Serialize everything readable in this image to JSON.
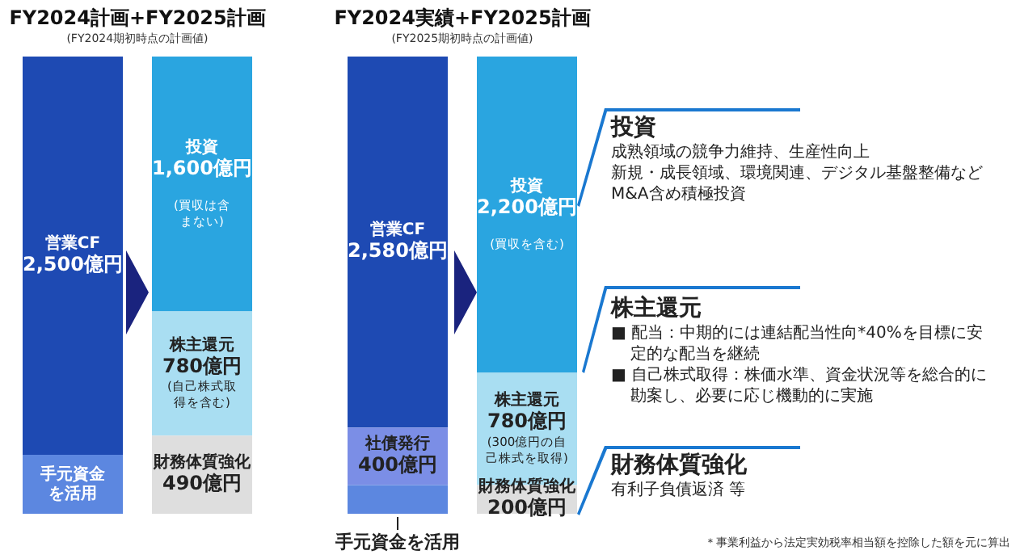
{
  "chart_data": [
    {
      "type": "bar",
      "title": "FY2024計画+FY2025計画",
      "subtitle": "(FY2024期初時点の計画値)",
      "categories": [
        null,
        null
      ],
      "stacked": true,
      "series": [
        {
          "name": "手元資金を活用",
          "color": "#5c87e0",
          "values": [
            370,
            null
          ],
          "value_labels": [
            null,
            null
          ]
        },
        {
          "name": "営業CF",
          "color": "#1e4ab3",
          "values": [
            2500,
            null
          ],
          "value_labels": [
            "2,500億円",
            null
          ]
        },
        {
          "name": "財務体質強化",
          "color": "#dedede",
          "values": [
            null,
            490
          ],
          "value_labels": [
            null,
            "490億円"
          ]
        },
        {
          "name": "株主還元",
          "color": "#a9def2",
          "values": [
            null,
            780
          ],
          "value_labels": [
            null,
            "780億円\n(自己株式取得を含む)"
          ]
        },
        {
          "name": "投資",
          "color": "#2aa5e0",
          "values": [
            null,
            1600
          ],
          "value_labels": [
            null,
            "1,600億円\n(買収は含まない)"
          ]
        }
      ]
    },
    {
      "type": "bar",
      "title": "FY2024実績+FY2025計画",
      "subtitle": "(FY2025期初時点の計画値)",
      "categories": [
        null,
        null
      ],
      "stacked": true,
      "series": [
        {
          "name": "手元資金を活用",
          "color": "#5c87e0",
          "values": [
            200,
            null
          ],
          "value_labels": [
            null,
            null
          ]
        },
        {
          "name": "社債発行",
          "color": "#7b8ee6",
          "values": [
            400,
            null
          ],
          "value_labels": [
            "400億円",
            null
          ]
        },
        {
          "name": "営業CF",
          "color": "#1e4ab3",
          "values": [
            2580,
            null
          ],
          "value_labels": [
            "2,580億円",
            null
          ]
        },
        {
          "name": "財務体質強化",
          "color": "#dedede",
          "values": [
            null,
            200
          ],
          "value_labels": [
            null,
            "200億円"
          ]
        },
        {
          "name": "株主還元",
          "color": "#a9def2",
          "values": [
            null,
            780
          ],
          "value_labels": [
            null,
            "780億円\n(300億円の自己株式を取得)"
          ]
        },
        {
          "name": "投資",
          "color": "#2aa5e0",
          "values": [
            null,
            2200
          ],
          "value_labels": [
            null,
            "2,200億円\n(買収を含む)"
          ]
        }
      ]
    },
    {
      "type": "other",
      "title": "投資",
      "annotations": [
        "成熟領域の競争力維持、生産性向上",
        "新規・成長領域、環境関連、デジタル基盤整備など",
        "M&A含め積極投資"
      ]
    },
    {
      "type": "other",
      "title": "株主還元",
      "annotations": [
        "■ 配当：中期的には連結配当性向*40%を目標に安定的な配当を継続",
        "■ 自己株式取得：株価水準、資金状況等を総合的に勘案し、必要に応じ機動的に実施"
      ]
    },
    {
      "type": "other",
      "title": "財務体質強化",
      "annotations": [
        "有利子負債返済 等"
      ]
    },
    {
      "type": "other",
      "annotations": [
        "＊事業利益から法定実効税率相当額を控除した額を元に算出"
      ]
    }
  ]
}
